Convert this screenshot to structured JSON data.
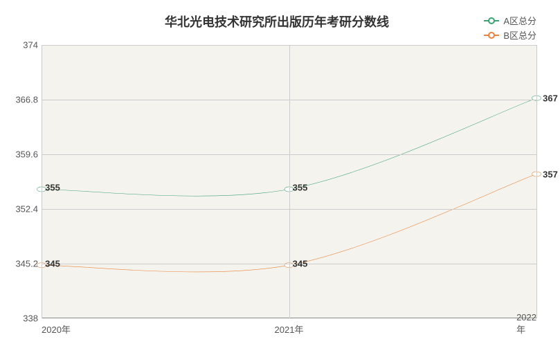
{
  "chart": {
    "type": "line",
    "title": "华北光电技术研究所出版历年考研分数线",
    "title_fontsize": 18,
    "title_color": "#333333",
    "background_color": "#ffffff",
    "plot_background_color": "#f5f3ed",
    "grid_color": "#cccccc",
    "axis_color": "#888888",
    "xlabels": [
      "2020年",
      "2021年",
      "2022年"
    ],
    "x_positions": [
      0,
      0.5,
      1
    ],
    "ylim": [
      338,
      374
    ],
    "yticks": [
      338,
      345.2,
      352.4,
      359.6,
      366.8,
      374
    ],
    "ytick_labels": [
      "338",
      "345.2",
      "352.4",
      "359.6",
      "366.8",
      "374"
    ],
    "tick_fontsize": 13,
    "tick_color": "#555555",
    "series": [
      {
        "name": "A区总分",
        "color": "#3ba272",
        "line_width": 2,
        "marker": "circle",
        "marker_size": 6,
        "values": [
          355,
          355,
          367
        ],
        "point_labels": [
          "355",
          "355",
          "367"
        ],
        "smooth": true
      },
      {
        "name": "B区总分",
        "color": "#e8833a",
        "line_width": 2,
        "marker": "circle",
        "marker_size": 6,
        "values": [
          345,
          345,
          357
        ],
        "point_labels": [
          "345",
          "345",
          "357"
        ],
        "smooth": true
      }
    ],
    "legend": {
      "position": "top-right",
      "fontsize": 13,
      "label_color": "#555555"
    },
    "point_label_fontsize": 13,
    "point_label_color": "#333333"
  }
}
